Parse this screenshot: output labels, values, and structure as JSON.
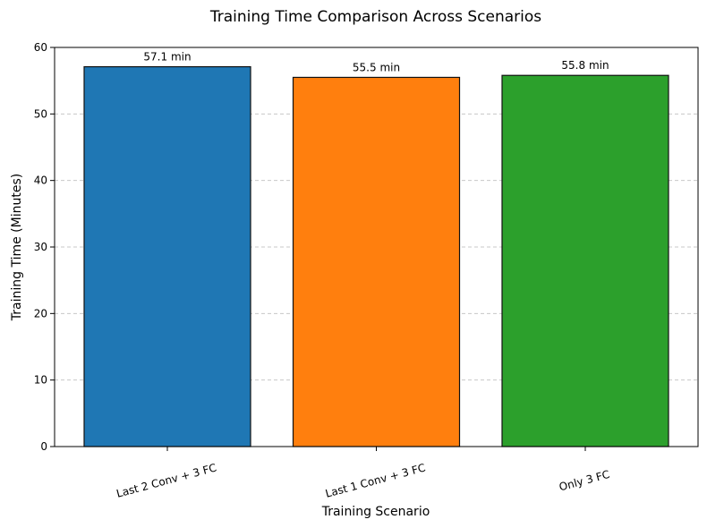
{
  "chart_data": {
    "type": "bar",
    "title": "Training Time Comparison Across Scenarios",
    "xlabel": "Training Scenario",
    "ylabel": "Training Time (Minutes)",
    "categories": [
      "Last 2 Conv + 3 FC",
      "Last 1 Conv + 3 FC",
      "Only 3 FC"
    ],
    "values": [
      57.1,
      55.5,
      55.8
    ],
    "value_labels": [
      "57.1 min",
      "55.5 min",
      "55.8 min"
    ],
    "colors": [
      "#1f77b4",
      "#ff7f0e",
      "#2ca02c"
    ],
    "ylim": [
      0,
      60
    ],
    "yticks": [
      0,
      10,
      20,
      30,
      40,
      50,
      60
    ],
    "grid": "y-dashed"
  }
}
